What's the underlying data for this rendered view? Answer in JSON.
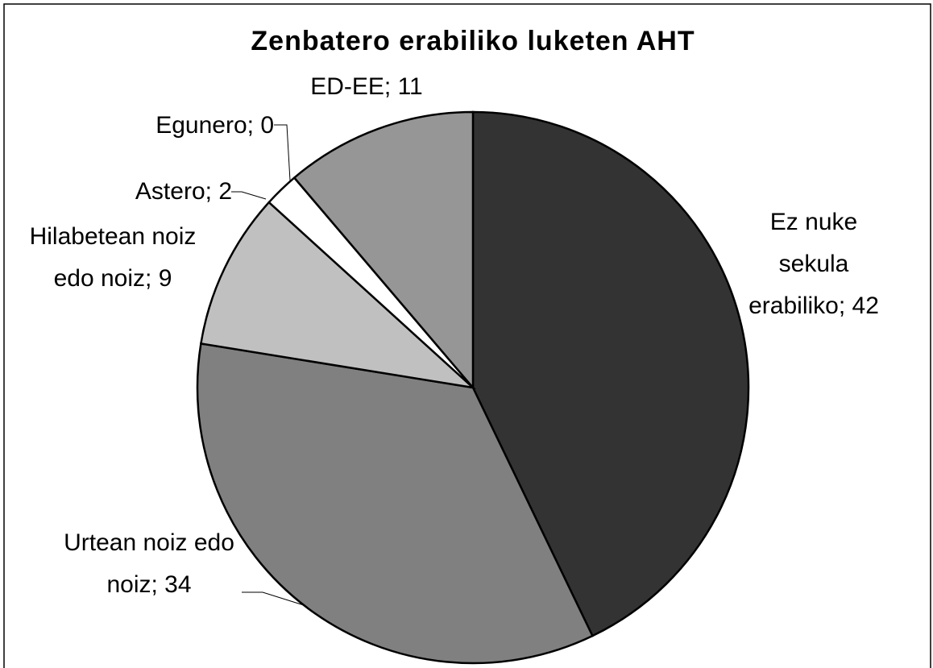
{
  "chart_data": {
    "type": "pie",
    "title": "Zenbatero erabiliko luketen AHT",
    "categories": [
      "Ez nuke sekula erabiliko",
      "Urtean noiz edo noiz",
      "Hilabetean noiz edo noiz",
      "Astero",
      "Egunero",
      "ED-EE"
    ],
    "values": [
      42,
      34,
      9,
      2,
      0,
      11
    ],
    "colors": [
      "#333333",
      "#808080",
      "#c0c0c0",
      "#ffffff",
      "#000000",
      "#969696"
    ],
    "label_separator": "; "
  }
}
